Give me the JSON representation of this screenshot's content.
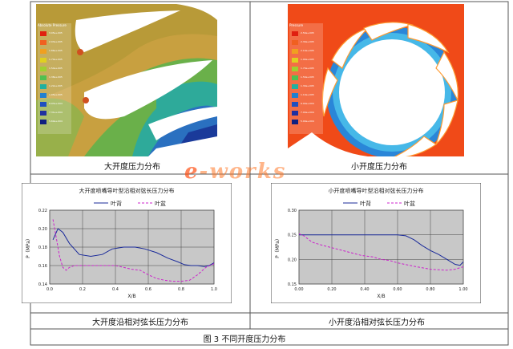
{
  "contour_left": {
    "legend_title": "Absolute Pressure",
    "legend_values": [
      "3.05e+005",
      "2.03e+005",
      "1.86e+005",
      "1.70e+005",
      "1.54e+005",
      "1.38e+005",
      "1.22e+005",
      "1.05e+005",
      "8.93e+004",
      "7.31e+004",
      "5.69e+004"
    ],
    "caption": "大开度压力分布"
  },
  "contour_right": {
    "legend_title": "Pressure",
    "legend_values": [
      "2.50e+005",
      "2.30e+005",
      "2.10e+005",
      "1.90e+005",
      "1.70e+005",
      "1.50e+005",
      "1.30e+005",
      "1.10e+005",
      "9.00e+004",
      "7.00e+004",
      "5.00e+004"
    ],
    "caption": "小开度压力分布"
  },
  "watermark": "e-works",
  "chart_data": [
    {
      "type": "line",
      "title": "大开度喷嘴导叶型沿相对弦长压力分布",
      "xlabel": "X/B",
      "ylabel": "P（MPa）",
      "x_ticks": [
        "0.0",
        "0.2",
        "0.4",
        "0.6",
        "0.8",
        "1.0"
      ],
      "y_ticks": [
        "0.14",
        "0.16",
        "0.18",
        "0.20",
        "0.22"
      ],
      "xlim": [
        0,
        1.0
      ],
      "ylim": [
        0.14,
        0.22
      ],
      "grid": true,
      "legend_position": "top",
      "series": [
        {
          "name": "叶背",
          "color": "#1a2a9a",
          "dash": "solid",
          "x": [
            0.02,
            0.05,
            0.08,
            0.12,
            0.18,
            0.25,
            0.32,
            0.38,
            0.45,
            0.52,
            0.58,
            0.65,
            0.72,
            0.78,
            0.82,
            0.86,
            0.9,
            0.94,
            0.97,
            1.0
          ],
          "y": [
            0.188,
            0.2,
            0.196,
            0.184,
            0.172,
            0.17,
            0.172,
            0.178,
            0.18,
            0.18,
            0.178,
            0.174,
            0.168,
            0.164,
            0.161,
            0.16,
            0.16,
            0.159,
            0.16,
            0.163
          ]
        },
        {
          "name": "叶盆",
          "color": "#cc22cc",
          "dash": "dashed",
          "x": [
            0.02,
            0.04,
            0.06,
            0.08,
            0.1,
            0.12,
            0.15,
            0.2,
            0.3,
            0.4,
            0.5,
            0.55,
            0.6,
            0.65,
            0.7,
            0.75,
            0.8,
            0.85,
            0.9,
            0.95,
            1.0
          ],
          "y": [
            0.21,
            0.19,
            0.17,
            0.158,
            0.155,
            0.158,
            0.16,
            0.16,
            0.16,
            0.16,
            0.156,
            0.155,
            0.15,
            0.146,
            0.144,
            0.143,
            0.143,
            0.144,
            0.15,
            0.158,
            0.162
          ]
        }
      ],
      "caption": "大开度沿相对弦长压力分布"
    },
    {
      "type": "line",
      "title": "小开度喷嘴导叶型沿相对弦长压力分布",
      "xlabel": "X/B",
      "ylabel": "P（MPa）",
      "x_ticks": [
        "0.00",
        "0.20",
        "0.40",
        "0.60",
        "0.80",
        "1.00"
      ],
      "y_ticks": [
        "0.15",
        "0.20",
        "0.25",
        "0.30"
      ],
      "xlim": [
        0,
        1.0
      ],
      "ylim": [
        0.15,
        0.3
      ],
      "grid": true,
      "legend_position": "top",
      "series": [
        {
          "name": "叶背",
          "color": "#1a2a9a",
          "dash": "solid",
          "x": [
            0.0,
            0.1,
            0.2,
            0.3,
            0.4,
            0.5,
            0.6,
            0.65,
            0.7,
            0.75,
            0.8,
            0.85,
            0.9,
            0.95,
            0.98,
            1.0
          ],
          "y": [
            0.25,
            0.25,
            0.25,
            0.25,
            0.25,
            0.25,
            0.25,
            0.248,
            0.24,
            0.228,
            0.218,
            0.21,
            0.2,
            0.19,
            0.188,
            0.195
          ]
        },
        {
          "name": "叶盆",
          "color": "#cc22cc",
          "dash": "dashed",
          "x": [
            0.0,
            0.03,
            0.08,
            0.15,
            0.22,
            0.3,
            0.38,
            0.45,
            0.5,
            0.55,
            0.6,
            0.7,
            0.8,
            0.9,
            0.95,
            1.0
          ],
          "y": [
            0.252,
            0.248,
            0.235,
            0.228,
            0.222,
            0.215,
            0.208,
            0.205,
            0.2,
            0.198,
            0.193,
            0.186,
            0.18,
            0.178,
            0.18,
            0.185
          ]
        }
      ],
      "caption": "小开度沿相对弦长压力分布"
    }
  ],
  "figure_caption": "图 3  不同开度压力分布"
}
